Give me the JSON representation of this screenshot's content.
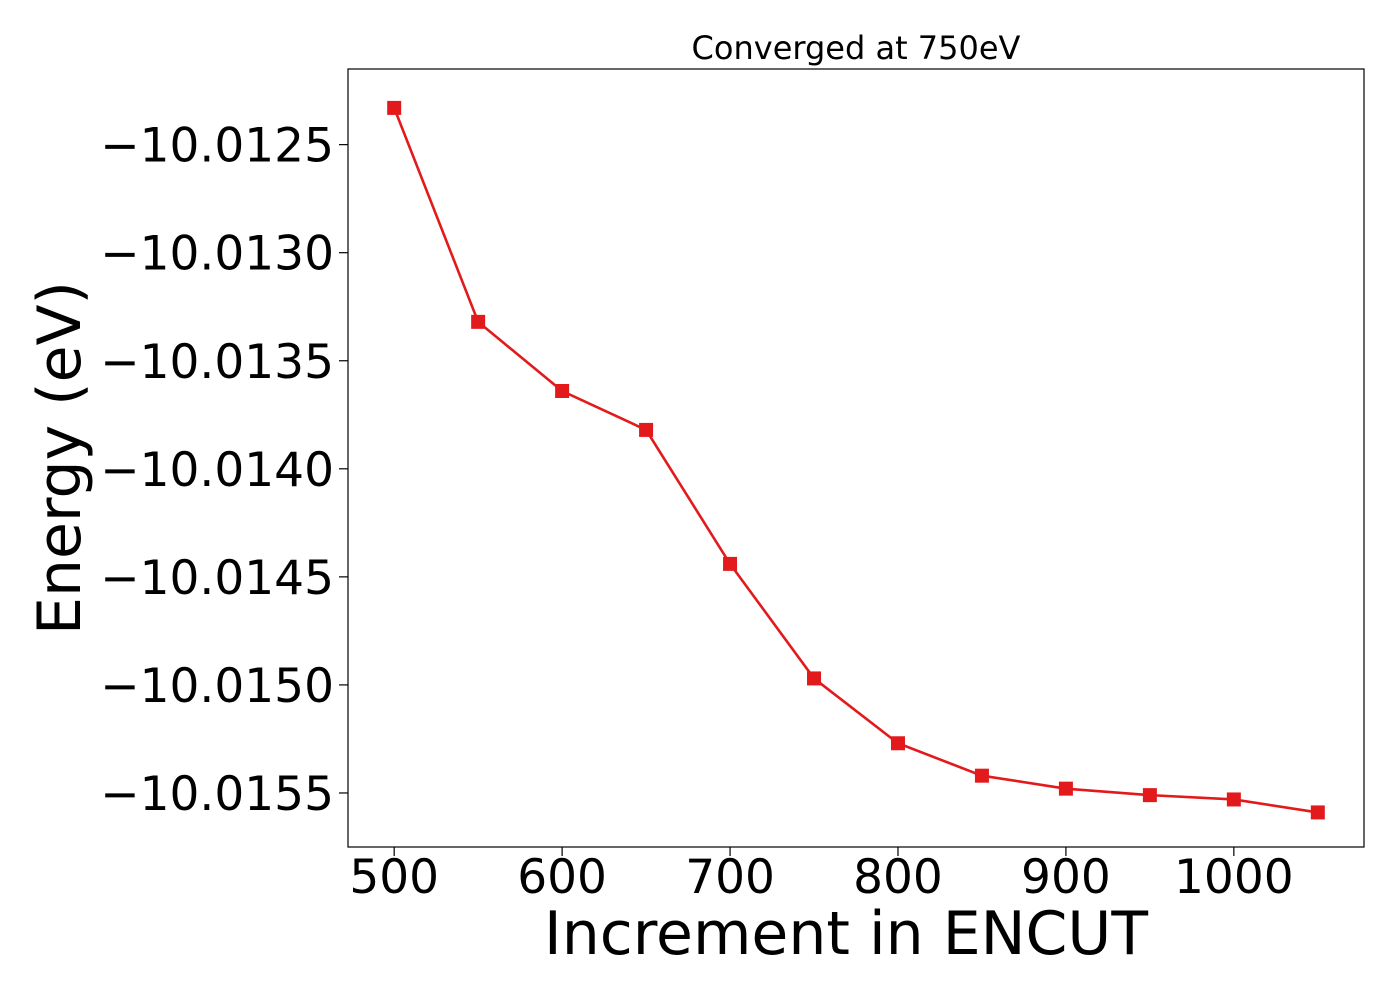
{
  "chart_data": {
    "type": "line",
    "title": "Converged at 750eV",
    "xlabel": "Increment in ENCUT",
    "ylabel": "Energy (eV)",
    "xlim": [
      472.5,
      1077.5
    ],
    "ylim": [
      -10.01575,
      -10.01215
    ],
    "xticks": [
      500,
      600,
      700,
      800,
      900,
      1000
    ],
    "yticks": [
      -10.0125,
      -10.013,
      -10.0135,
      -10.014,
      -10.0145,
      -10.015,
      -10.0155
    ],
    "ytick_labels": [
      "−10.0125",
      "−10.0130",
      "−10.0135",
      "−10.0140",
      "−10.0145",
      "−10.0150",
      "−10.0155"
    ],
    "grid": false,
    "legend": "none",
    "marker": "square",
    "color": "#e31a1c",
    "series": [
      {
        "x": [
          500,
          550,
          600,
          650,
          700,
          750,
          800,
          850,
          900,
          950,
          1000,
          1050
        ],
        "y": [
          -10.01233,
          -10.01332,
          -10.01364,
          -10.01382,
          -10.01444,
          -10.01497,
          -10.01527,
          -10.01542,
          -10.01548,
          -10.01551,
          -10.01553,
          -10.01559
        ]
      }
    ]
  }
}
